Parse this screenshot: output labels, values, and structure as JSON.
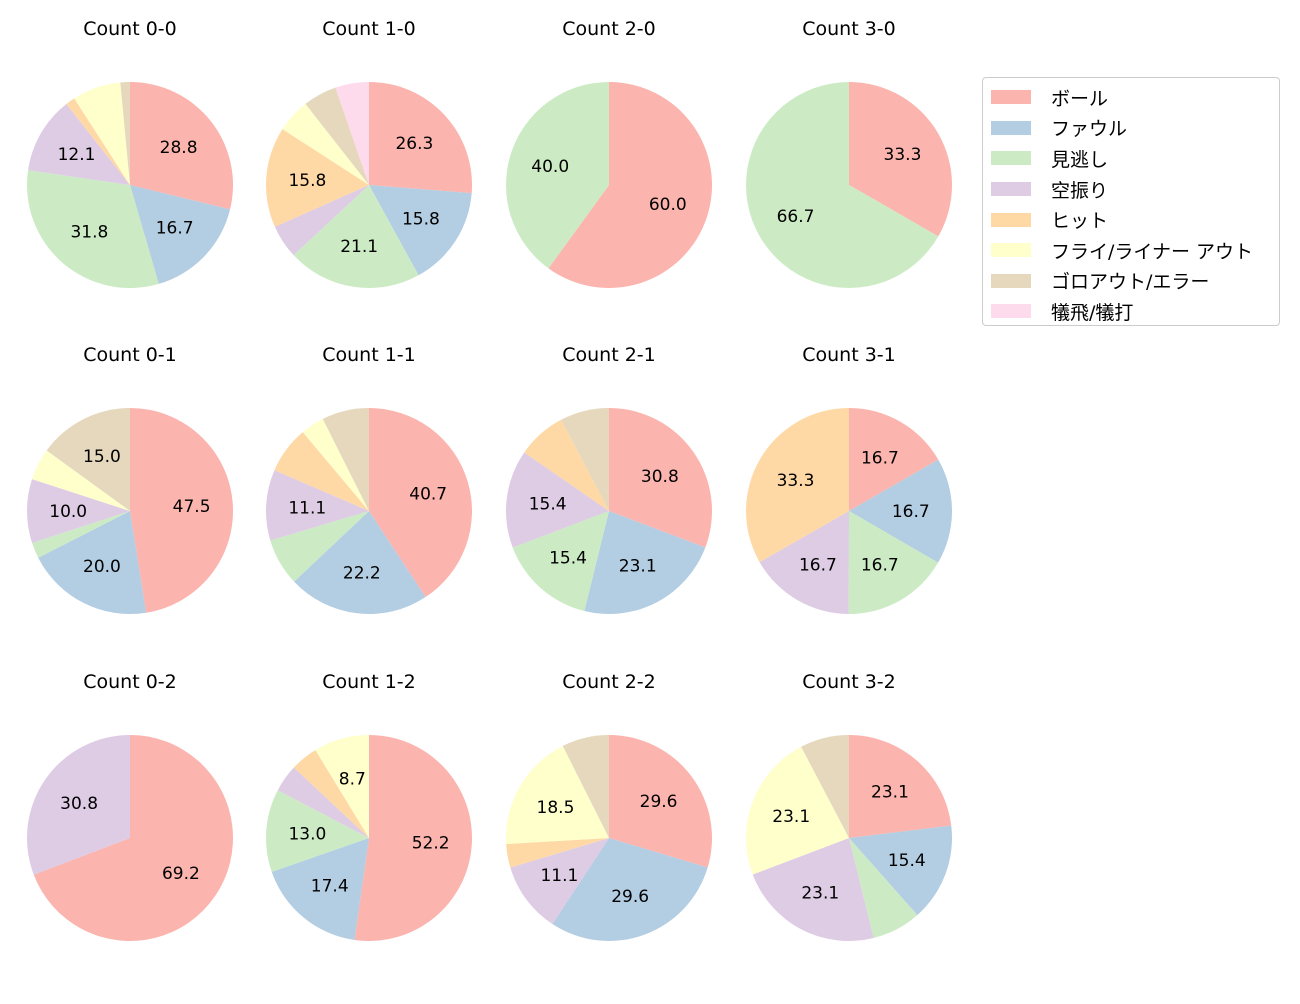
{
  "chart_data": {
    "type": "pie",
    "categories": [
      "ボール",
      "ファウル",
      "見逃し",
      "空振り",
      "ヒット",
      "フライ/ライナー アウト",
      "ゴロアウト/エラー",
      "犠飛/犠打"
    ],
    "colors": [
      "#fbb4ae",
      "#b3cde3",
      "#ccebc5",
      "#decbe4",
      "#fed9a6",
      "#ffffcc",
      "#e5d8bd",
      "#fddaec"
    ],
    "legend_position": "right",
    "start_angle": "top, clockwise",
    "charts": [
      {
        "title": "Count 0-0",
        "values": [
          28.8,
          16.7,
          31.8,
          12.1,
          1.5,
          7.6,
          1.5,
          0
        ]
      },
      {
        "title": "Count 1-0",
        "values": [
          26.3,
          15.8,
          21.1,
          5.3,
          15.8,
          5.3,
          5.3,
          5.3
        ]
      },
      {
        "title": "Count 2-0",
        "values": [
          60.0,
          0,
          40.0,
          0,
          0,
          0,
          0,
          0
        ]
      },
      {
        "title": "Count 3-0",
        "values": [
          33.3,
          0,
          66.7,
          0,
          0,
          0,
          0,
          0
        ]
      },
      {
        "title": "Count 0-1",
        "values": [
          47.5,
          20.0,
          2.5,
          10.0,
          0,
          5.0,
          15.0,
          0
        ]
      },
      {
        "title": "Count 1-1",
        "values": [
          40.7,
          22.2,
          7.4,
          11.1,
          7.4,
          3.7,
          7.4,
          0
        ]
      },
      {
        "title": "Count 2-1",
        "values": [
          30.8,
          23.1,
          15.4,
          15.4,
          7.7,
          0,
          7.7,
          0
        ]
      },
      {
        "title": "Count 3-1",
        "values": [
          16.7,
          16.7,
          16.7,
          16.7,
          33.3,
          0,
          0,
          0
        ]
      },
      {
        "title": "Count 0-2",
        "values": [
          69.2,
          0,
          0,
          30.8,
          0,
          0,
          0,
          0
        ]
      },
      {
        "title": "Count 1-2",
        "values": [
          52.2,
          17.4,
          13.0,
          4.3,
          4.3,
          8.7,
          0,
          0
        ]
      },
      {
        "title": "Count 2-2",
        "values": [
          29.6,
          29.6,
          0,
          11.1,
          3.7,
          18.5,
          7.4,
          0
        ]
      },
      {
        "title": "Count 3-2",
        "values": [
          23.1,
          15.4,
          7.7,
          23.1,
          0,
          23.1,
          7.7,
          0
        ]
      }
    ]
  }
}
